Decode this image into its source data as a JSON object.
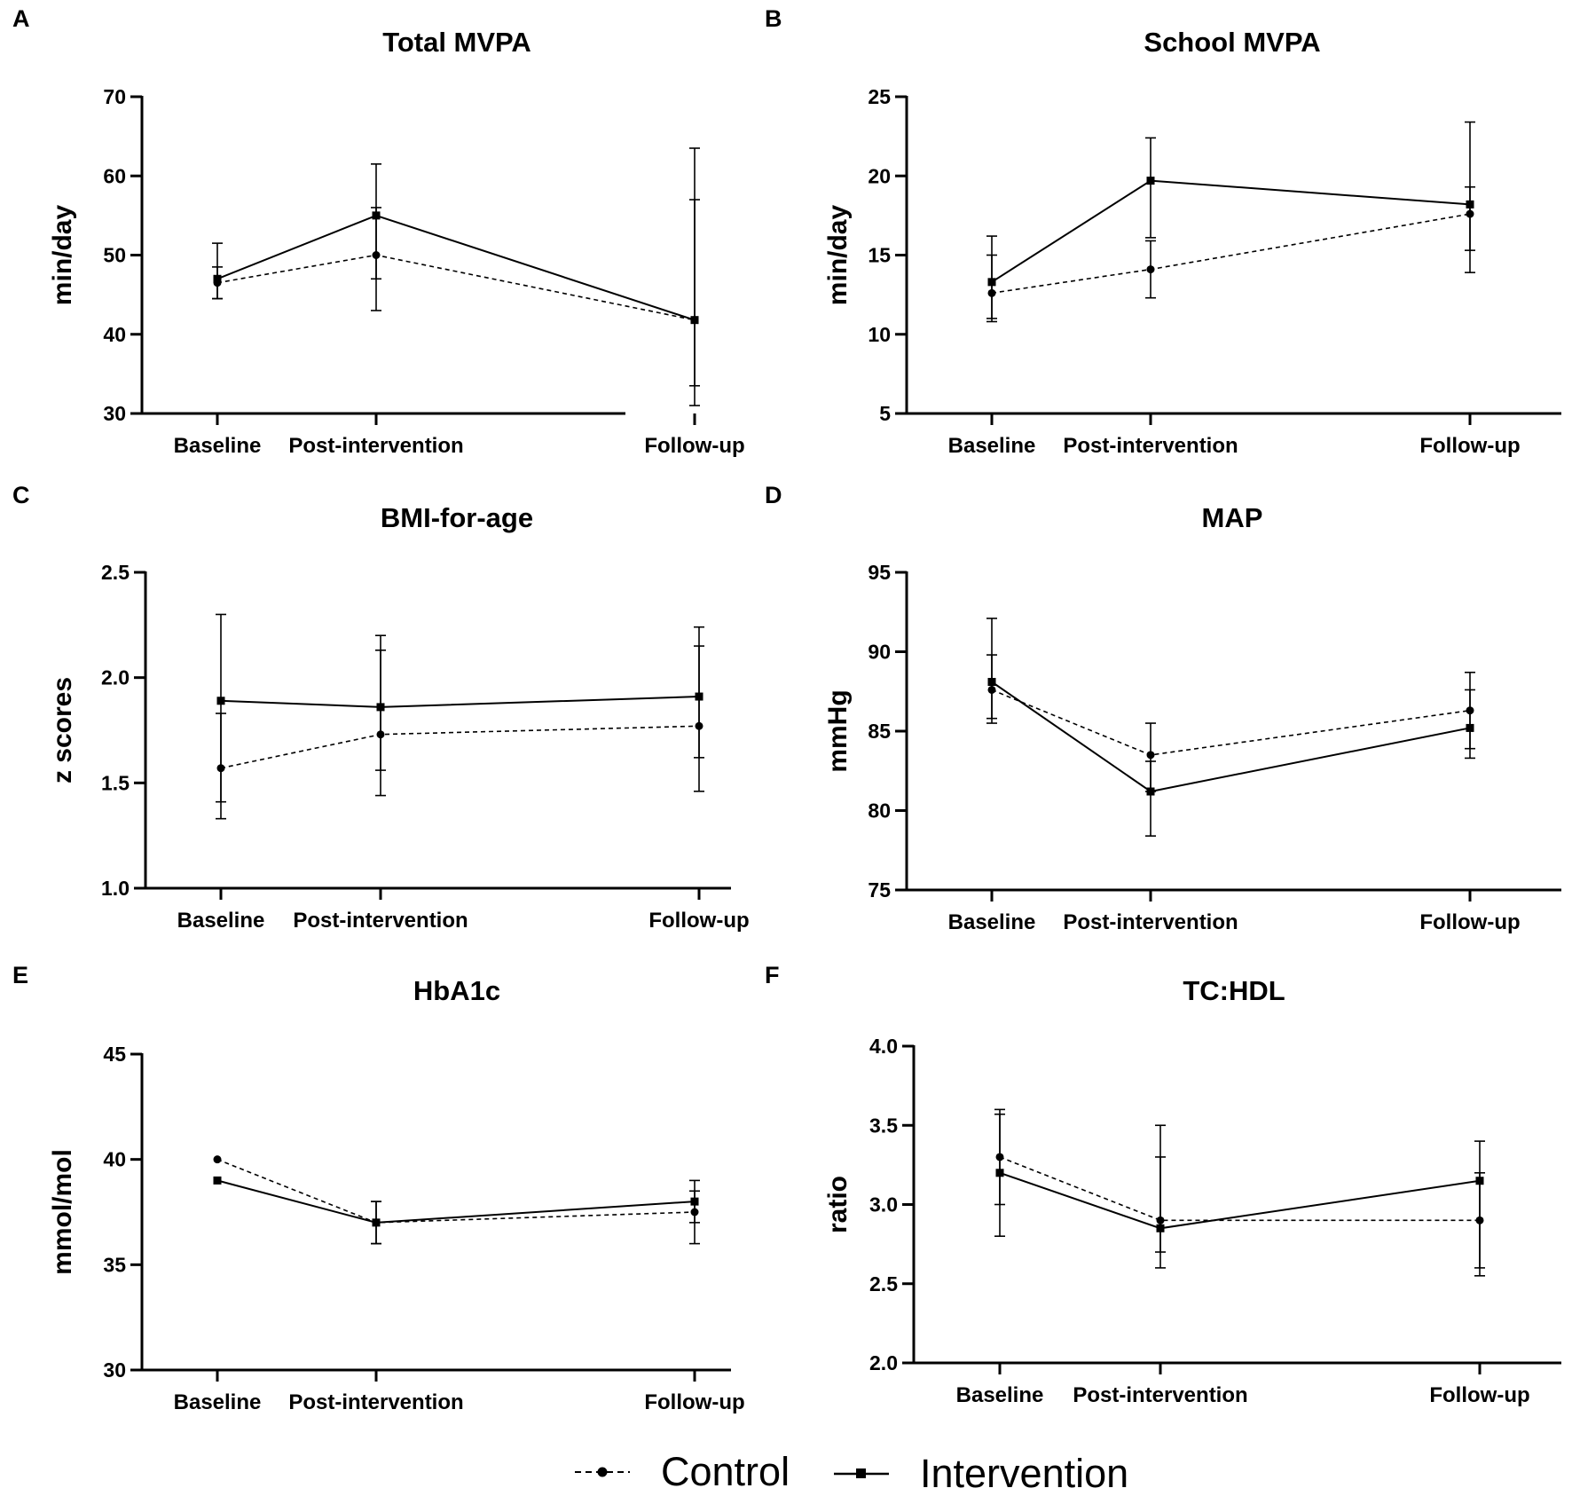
{
  "chart_data": [
    {
      "type": "line",
      "panel": "A",
      "title": "Total MVPA",
      "ylabel": "min/day",
      "xlabel": "",
      "categories": [
        "Baseline",
        "Post-intervention",
        "Follow-up"
      ],
      "ylim": [
        30,
        70
      ],
      "yticks": [
        30,
        40,
        50,
        60,
        70
      ],
      "series": [
        {
          "name": "Control",
          "values": [
            46.5,
            50,
            41.8
          ],
          "err_low": [
            44.5,
            43,
            33.5
          ],
          "err_high": [
            48.5,
            56,
            57
          ]
        },
        {
          "name": "Intervention",
          "values": [
            47,
            55,
            41.8
          ],
          "err_low": [
            44.5,
            47,
            31
          ],
          "err_high": [
            51.5,
            61.5,
            63.5
          ]
        }
      ]
    },
    {
      "type": "line",
      "panel": "B",
      "title": "School MVPA",
      "ylabel": "min/day",
      "xlabel": "",
      "categories": [
        "Baseline",
        "Post-intervention",
        "Follow-up"
      ],
      "ylim": [
        5,
        25
      ],
      "yticks": [
        5,
        10,
        15,
        20,
        25
      ],
      "series": [
        {
          "name": "Control",
          "values": [
            12.6,
            14.1,
            17.6
          ],
          "err_low": [
            11,
            12.3,
            15.3
          ],
          "err_high": [
            15,
            15.9,
            19.3
          ]
        },
        {
          "name": "Intervention",
          "values": [
            13.3,
            19.7,
            18.2
          ],
          "err_low": [
            10.8,
            16.1,
            13.9
          ],
          "err_high": [
            16.2,
            22.4,
            23.4
          ]
        }
      ]
    },
    {
      "type": "line",
      "panel": "C",
      "title": "BMI-for-age",
      "ylabel": "z scores",
      "xlabel": "",
      "categories": [
        "Baseline",
        "Post-intervention",
        "Follow-up"
      ],
      "ylim": [
        1.0,
        2.5
      ],
      "yticks": [
        "1.0",
        "1.5",
        "2.0",
        "2.5"
      ],
      "series": [
        {
          "name": "Control",
          "values": [
            1.57,
            1.73,
            1.77
          ],
          "err_low": [
            1.33,
            1.44,
            1.46
          ],
          "err_high": [
            1.83,
            2.13,
            2.15
          ]
        },
        {
          "name": "Intervention",
          "values": [
            1.89,
            1.86,
            1.91
          ],
          "err_low": [
            1.41,
            1.56,
            1.62
          ],
          "err_high": [
            2.3,
            2.2,
            2.24
          ]
        }
      ]
    },
    {
      "type": "line",
      "panel": "D",
      "title": "MAP",
      "ylabel": "mmHg",
      "xlabel": "",
      "categories": [
        "Baseline",
        "Post-intervention",
        "Follow-up"
      ],
      "ylim": [
        75,
        95
      ],
      "yticks": [
        75,
        80,
        85,
        90,
        95
      ],
      "series": [
        {
          "name": "Control",
          "values": [
            87.6,
            83.5,
            86.3
          ],
          "err_low": [
            85.5,
            81.2,
            83.3
          ],
          "err_high": [
            89.8,
            85.5,
            88.7
          ]
        },
        {
          "name": "Intervention",
          "values": [
            88.1,
            81.2,
            85.2
          ],
          "err_low": [
            85.8,
            78.4,
            83.9
          ],
          "err_high": [
            92.1,
            83.1,
            87.6
          ]
        }
      ]
    },
    {
      "type": "line",
      "panel": "E",
      "title": "HbA1c",
      "ylabel": "mmol/mol",
      "xlabel": "",
      "categories": [
        "Baseline",
        "Post-intervention",
        "Follow-up"
      ],
      "ylim": [
        30,
        45
      ],
      "yticks": [
        30,
        35,
        40,
        45
      ],
      "series": [
        {
          "name": "Control",
          "values": [
            40,
            37,
            37.5
          ],
          "err_low": [
            40,
            36,
            36
          ],
          "err_high": [
            40,
            38,
            38.5
          ]
        },
        {
          "name": "Intervention",
          "values": [
            39,
            37,
            38
          ],
          "err_low": [
            39,
            36,
            37
          ],
          "err_high": [
            39,
            38,
            39
          ]
        }
      ]
    },
    {
      "type": "line",
      "panel": "F",
      "title": "TC:HDL",
      "ylabel": "ratio",
      "xlabel": "",
      "categories": [
        "Baseline",
        "Post-intervention",
        "Follow-up"
      ],
      "ylim": [
        2.0,
        4.0
      ],
      "yticks": [
        "2.0",
        "2.5",
        "3.0",
        "3.5",
        "4.0"
      ],
      "series": [
        {
          "name": "Control",
          "values": [
            3.3,
            2.9,
            2.9
          ],
          "err_low": [
            3.0,
            2.6,
            2.55
          ],
          "err_high": [
            3.6,
            3.3,
            3.2
          ]
        },
        {
          "name": "Intervention",
          "values": [
            3.2,
            2.85,
            3.15
          ],
          "err_low": [
            2.8,
            2.7,
            2.6
          ],
          "err_high": [
            3.57,
            3.5,
            3.4
          ]
        }
      ]
    }
  ],
  "legend": {
    "control_label": "Control",
    "intervention_label": "Intervention"
  }
}
